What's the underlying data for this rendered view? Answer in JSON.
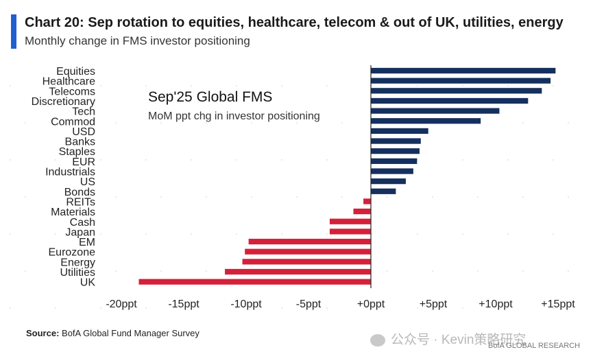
{
  "header": {
    "title": "Chart 20: Sep rotation to equities, healthcare, telecom & out of UK, utilities, energy",
    "subtitle": "Monthly change in FMS investor positioning",
    "accent_color": "#1f5fd1"
  },
  "inset": {
    "title": "Sep'25 Global FMS",
    "subtitle": "MoM ppt chg in investor positioning"
  },
  "chart_data": {
    "type": "bar",
    "orientation": "horizontal",
    "categories": [
      "Equities",
      "Healthcare",
      "Telecoms",
      "Discretionary",
      "Tech",
      "Commod",
      "USD",
      "Banks",
      "Staples",
      "EUR",
      "Industrials",
      "US",
      "Bonds",
      "REITs",
      "Materials",
      "Cash",
      "Japan",
      "EM",
      "Eurozone",
      "Energy",
      "Utilities",
      "UK"
    ],
    "values": [
      14.8,
      14.4,
      13.7,
      12.6,
      10.3,
      8.8,
      4.6,
      4.0,
      3.9,
      3.7,
      3.4,
      2.8,
      2.0,
      -0.6,
      -1.4,
      -3.3,
      -3.3,
      -9.8,
      -10.1,
      -10.3,
      -11.7,
      -18.6
    ],
    "ticks": [
      "-20ppt",
      "-15ppt",
      "-10ppt",
      "-5ppt",
      "+0ppt",
      "+5ppt",
      "+10ppt",
      "+15ppt"
    ],
    "xlim": [
      -20,
      15
    ],
    "positive_color": "#15305e",
    "negative_color": "#d5203a",
    "grid": false
  },
  "footer": {
    "source_label": "Source:",
    "source_text": " BofA Global Fund Manager Survey",
    "watermark": "公众号 · Kevin策略研究",
    "brand": "BofA GLOBAL RESEARCH"
  }
}
